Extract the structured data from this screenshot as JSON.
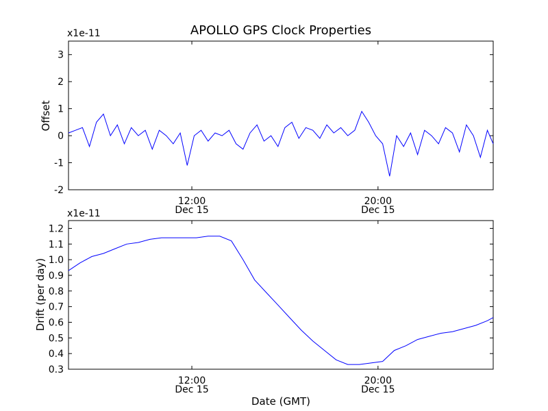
{
  "title": "APOLLO GPS Clock Properties",
  "colors": {
    "series": "#0000ff",
    "frame": "#000000",
    "background": "#ffffff"
  },
  "chart_data": [
    {
      "type": "line",
      "name": "offset",
      "title": "APOLLO GPS Clock Properties",
      "scale_label": "x1e-11",
      "xlabel": "",
      "ylabel": "Offset",
      "xlim": [
        6.7,
        24.95
      ],
      "ylim": [
        -2,
        3.5
      ],
      "yticks": [
        3,
        2,
        1,
        0,
        -1,
        -2
      ],
      "ytick_labels": [
        "3",
        "2",
        "1",
        "0",
        "-1",
        "-2"
      ],
      "xticks": [
        {
          "hour": 12,
          "time": "12:00",
          "date": "Dec 15"
        },
        {
          "hour": 20,
          "time": "20:00",
          "date": "Dec 15"
        }
      ],
      "x": [
        6.7,
        7.0,
        7.3,
        7.6,
        7.9,
        8.2,
        8.5,
        8.8,
        9.1,
        9.4,
        9.7,
        10.0,
        10.3,
        10.6,
        10.9,
        11.2,
        11.5,
        11.8,
        12.1,
        12.4,
        12.7,
        13.0,
        13.3,
        13.6,
        13.9,
        14.2,
        14.5,
        14.8,
        15.1,
        15.4,
        15.7,
        16.0,
        16.3,
        16.6,
        16.9,
        17.2,
        17.5,
        17.8,
        18.1,
        18.4,
        18.7,
        19.0,
        19.3,
        19.6,
        19.9,
        20.2,
        20.5,
        20.8,
        21.1,
        21.4,
        21.7,
        22.0,
        22.3,
        22.6,
        22.9,
        23.2,
        23.5,
        23.8,
        24.1,
        24.4,
        24.7,
        24.95
      ],
      "values": [
        0.1,
        0.2,
        0.3,
        -0.4,
        0.5,
        0.8,
        0.0,
        0.4,
        -0.3,
        0.3,
        0.0,
        0.2,
        -0.5,
        0.2,
        0.0,
        -0.3,
        0.1,
        -1.1,
        0.0,
        0.2,
        -0.2,
        0.1,
        0.0,
        0.2,
        -0.3,
        -0.5,
        0.1,
        0.4,
        -0.2,
        0.0,
        -0.4,
        0.3,
        0.5,
        -0.1,
        0.3,
        0.2,
        -0.1,
        0.4,
        0.1,
        0.3,
        0.0,
        0.2,
        0.9,
        0.5,
        0.0,
        -0.3,
        -1.5,
        0.0,
        -0.4,
        0.1,
        -0.7,
        0.2,
        0.0,
        -0.3,
        0.3,
        0.1,
        -0.6,
        0.4,
        0.0,
        -0.8,
        0.2,
        -0.3
      ]
    },
    {
      "type": "line",
      "name": "drift",
      "title": "",
      "scale_label": "x1e-11",
      "xlabel": "Date (GMT)",
      "ylabel": "Drift (per day)",
      "xlim": [
        6.7,
        24.95
      ],
      "ylim": [
        0.3,
        1.25
      ],
      "yticks": [
        1.2,
        1.1,
        1.0,
        0.9,
        0.8,
        0.7,
        0.6,
        0.5,
        0.4,
        0.3
      ],
      "ytick_labels": [
        "1.2",
        "1.1",
        "1.0",
        "0.9",
        "0.8",
        "0.7",
        "0.6",
        "0.5",
        "0.4",
        "0.3"
      ],
      "xticks": [
        {
          "hour": 12,
          "time": "12:00",
          "date": "Dec 15"
        },
        {
          "hour": 20,
          "time": "20:00",
          "date": "Dec 15"
        }
      ],
      "x": [
        6.7,
        7.2,
        7.7,
        8.2,
        8.7,
        9.2,
        9.7,
        10.2,
        10.7,
        11.2,
        11.7,
        12.2,
        12.7,
        13.2,
        13.7,
        14.2,
        14.7,
        15.2,
        15.7,
        16.2,
        16.7,
        17.2,
        17.7,
        18.2,
        18.7,
        19.2,
        19.7,
        20.2,
        20.7,
        21.2,
        21.7,
        22.2,
        22.7,
        23.2,
        23.7,
        24.2,
        24.7,
        24.95
      ],
      "values": [
        0.93,
        0.98,
        1.02,
        1.04,
        1.07,
        1.1,
        1.11,
        1.13,
        1.14,
        1.14,
        1.14,
        1.14,
        1.15,
        1.15,
        1.12,
        1.0,
        0.87,
        0.79,
        0.71,
        0.63,
        0.55,
        0.48,
        0.42,
        0.36,
        0.33,
        0.33,
        0.34,
        0.35,
        0.42,
        0.45,
        0.49,
        0.51,
        0.53,
        0.54,
        0.56,
        0.58,
        0.61,
        0.63
      ]
    }
  ]
}
